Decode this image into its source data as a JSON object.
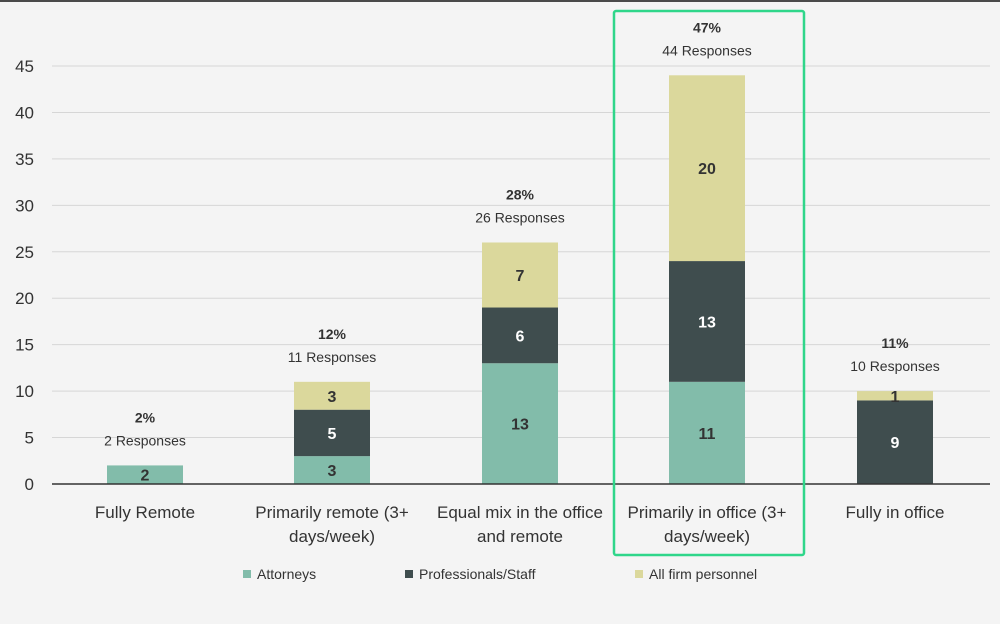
{
  "chart_data": {
    "type": "bar",
    "stacked": true,
    "categories": [
      [
        "Fully Remote"
      ],
      [
        "Primarily remote (3+",
        "days/week)"
      ],
      [
        "Equal mix in the office",
        "and remote"
      ],
      [
        "Primarily in office (3+",
        "days/week)"
      ],
      [
        "Fully in office"
      ]
    ],
    "series": [
      {
        "name": "Attorneys",
        "color": "#82bcaa",
        "values": [
          2,
          3,
          13,
          11,
          0
        ]
      },
      {
        "name": "Professionals/Staff",
        "color": "#3f4d4e",
        "values": [
          0,
          5,
          6,
          13,
          9
        ]
      },
      {
        "name": "All firm personnel",
        "color": "#dbd89c",
        "values": [
          0,
          3,
          7,
          20,
          1
        ]
      }
    ],
    "totals_pct": [
      "2%",
      "12%",
      "28%",
      "47%",
      "11%"
    ],
    "totals_responses": [
      "2 Responses",
      "11 Responses",
      "26 Responses",
      "44 Responses",
      "10 Responses"
    ],
    "yticks": [
      0,
      5,
      10,
      15,
      20,
      25,
      30,
      35,
      40,
      45
    ],
    "ylim": [
      0,
      45
    ],
    "grid": true,
    "legend_position": "bottom",
    "highlight_category_index": 3,
    "highlight_color": "#2fd68a"
  }
}
